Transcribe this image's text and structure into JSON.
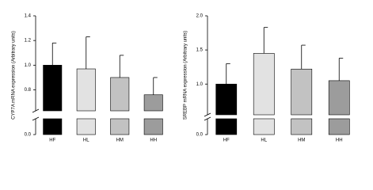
{
  "chart_data": [
    {
      "type": "bar",
      "y_label": "CYP7A mRNA expression (Arbitrary units)",
      "categories": [
        "HF",
        "HL",
        "HM",
        "HH"
      ],
      "values": [
        1.0,
        0.97,
        0.9,
        0.76
      ],
      "errors": [
        0.18,
        0.26,
        0.18,
        0.14
      ],
      "colors": [
        "#000000",
        "#e2e2e2",
        "#c2c2c2",
        "#9c9c9c"
      ],
      "ylim": [
        0,
        1.4
      ],
      "axis_break": [
        0.13,
        0.63
      ],
      "yticks": [
        {
          "value": 0,
          "label": "0.0"
        },
        {
          "value": 0.8,
          "label": "0.8"
        },
        {
          "value": 1.0,
          "label": "1.0"
        },
        1.2,
        1.4
      ]
    },
    {
      "type": "bar",
      "y_label": "SREBP mRNA expression (Arbitrary units)",
      "categories": [
        "HF",
        "HL",
        "HM",
        "HH"
      ],
      "values": [
        1.0,
        1.45,
        1.22,
        1.05
      ],
      "errors": [
        0.3,
        0.38,
        0.35,
        0.33
      ],
      "colors": [
        "#000000",
        "#e2e2e2",
        "#c2c2c2",
        "#9c9c9c"
      ],
      "ylim": [
        0,
        2.0
      ],
      "axis_break": [
        0.23,
        0.55
      ],
      "yticks": [
        {
          "value": 0,
          "label": "0.0"
        },
        {
          "value": 1.0,
          "label": "1.0"
        },
        1.5,
        {
          "value": 2.0,
          "label": "2.0"
        }
      ]
    }
  ]
}
